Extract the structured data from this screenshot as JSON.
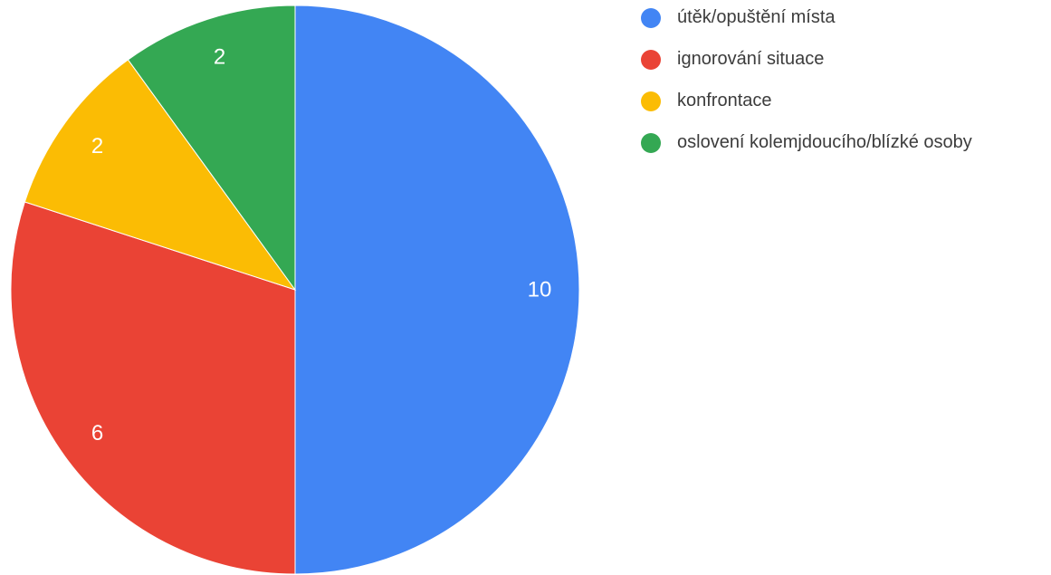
{
  "chart_data": {
    "type": "pie",
    "title": "",
    "legend_position": "right",
    "slices": [
      {
        "label": "útěk/opuštění místa",
        "value": 10,
        "color": "#4285f4"
      },
      {
        "label": "ignorování situace",
        "value": 6,
        "color": "#ea4335"
      },
      {
        "label": "konfrontace",
        "value": 2,
        "color": "#fbbc04"
      },
      {
        "label": "oslovení kolemjdoucího/blízké osoby",
        "value": 2,
        "color": "#34a853"
      }
    ]
  }
}
